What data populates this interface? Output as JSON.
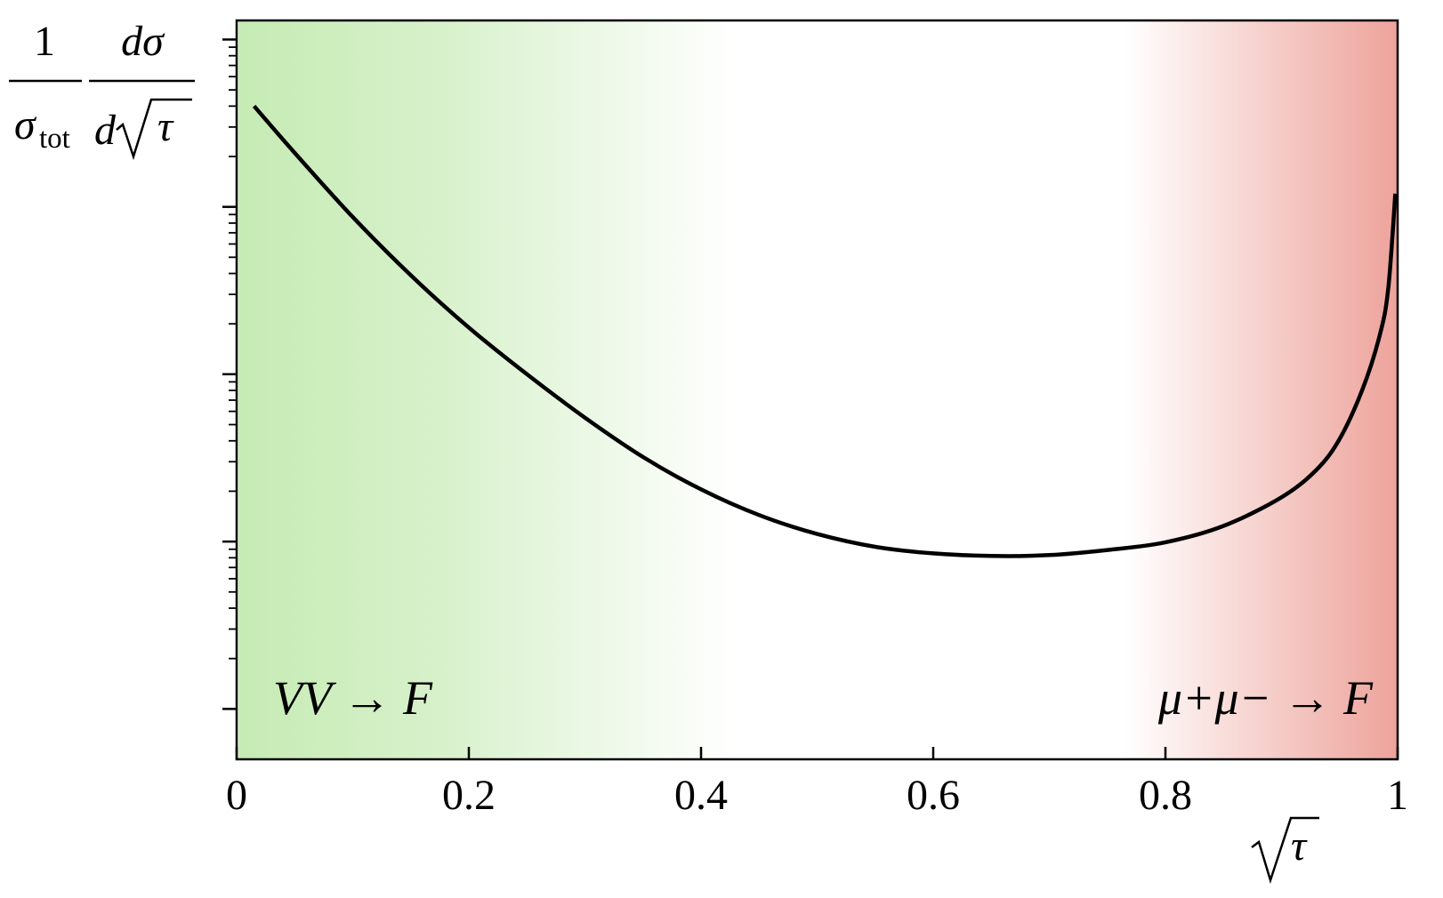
{
  "chart_data": {
    "type": "line",
    "title": "",
    "xlabel": "√τ",
    "ylabel": "(1/σtot) dσ/d√τ",
    "ylabel_parts": {
      "numerator_left": "1",
      "denominator_left": "σ",
      "denominator_left_sub": "tot",
      "numerator_right": "dσ",
      "denominator_right_d": "d",
      "denominator_right_tau": "τ"
    },
    "xlabel_tau": "τ",
    "xlim": [
      0,
      1
    ],
    "y_scale": "log",
    "y_tick_labels": "none",
    "x_ticks": [
      {
        "value": 0,
        "label": "0"
      },
      {
        "value": 0.2,
        "label": "0.2"
      },
      {
        "value": 0.4,
        "label": "0.4"
      },
      {
        "value": 0.6,
        "label": "0.6"
      },
      {
        "value": 0.8,
        "label": "0.8"
      },
      {
        "value": 1,
        "label": "1"
      }
    ],
    "y_decade_ticks": [
      1,
      10,
      100,
      1000,
      10000
    ],
    "ylim": [
      0.5,
      13000
    ],
    "series": [
      {
        "color": "#000000",
        "x": [
          0.015,
          0.05,
          0.1,
          0.15,
          0.2,
          0.25,
          0.3,
          0.35,
          0.4,
          0.45,
          0.5,
          0.55,
          0.6,
          0.65,
          0.7,
          0.75,
          0.8,
          0.85,
          0.9,
          0.93,
          0.95,
          0.97,
          0.985,
          0.992,
          0.998
        ],
        "y": [
          4000,
          2100,
          870,
          390,
          190,
          100,
          55,
          32,
          20.5,
          14.4,
          11.1,
          9.3,
          8.5,
          8.2,
          8.3,
          8.9,
          9.9,
          12.4,
          18.4,
          26.8,
          41,
          82,
          175,
          330,
          1200
        ]
      }
    ],
    "annotations": [
      {
        "id": "left_region",
        "text": "VV → F"
      },
      {
        "id": "right_region",
        "text": "μ+μ− → F"
      }
    ],
    "regions": [
      {
        "id": "vv",
        "color": "#c6ebb4",
        "side": "left"
      },
      {
        "id": "mumu",
        "color": "#eda39b",
        "side": "right"
      }
    ],
    "grid": false,
    "legend": "none"
  }
}
